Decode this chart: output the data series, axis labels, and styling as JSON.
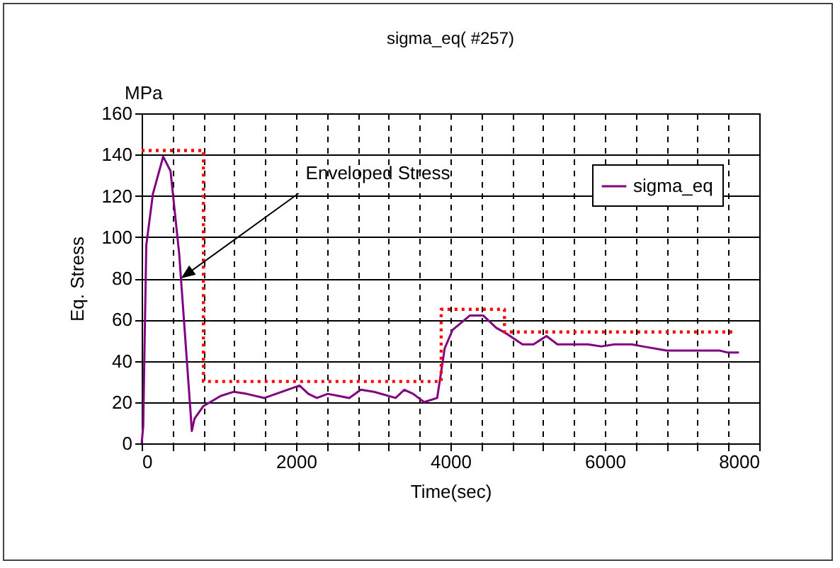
{
  "chart_data": {
    "type": "line",
    "title": "sigma_eq( #257)",
    "xlabel": "Time(sec)",
    "ylabel": "Eq. Stress",
    "annotations": [
      "MPa",
      {
        "text": "Enveloped Stress",
        "x": 510,
        "y": 80
      }
    ],
    "series": [
      {
        "name": "sigma_eq",
        "color": "#800080",
        "x": [
          0,
          20,
          60,
          146,
          279,
          374,
          486,
          628,
          650,
          685,
          798,
          1025,
          1195,
          1360,
          1590,
          1818,
          2045,
          2160,
          2270,
          2410,
          2550,
          2690,
          2838,
          3010,
          3290,
          3403,
          3517,
          3659,
          3828,
          3925,
          4027,
          4253,
          4423,
          4593,
          4735,
          4933,
          5075,
          5244,
          5386,
          5783,
          5953,
          6123,
          6350,
          6490,
          6802,
          7482,
          7595,
          7737
        ],
        "values": [
          0,
          8,
          96,
          121,
          139,
          132,
          92,
          18,
          6,
          12,
          18,
          23,
          25,
          24,
          22,
          25,
          28,
          24,
          22,
          24,
          23,
          22,
          26,
          25,
          22,
          26,
          24,
          20,
          22,
          46,
          55,
          62,
          62,
          56,
          53,
          48,
          48,
          52,
          48,
          48,
          47,
          48,
          48,
          47,
          45,
          45,
          44,
          44
        ]
      },
      {
        "type": "step",
        "color": "#ff0000",
        "line_style": "dotted",
        "x": [
          0,
          800,
          3880,
          4700,
          7700
        ],
        "values": [
          142,
          30,
          65,
          54,
          54
        ]
      }
    ],
    "xlim": [
      0,
      8000
    ],
    "ylim": [
      0,
      160
    ],
    "xticks": [
      0,
      {
        "value": 400,
        "label": null
      },
      {
        "value": 800,
        "label": null
      },
      {
        "value": 1200,
        "label": null
      },
      {
        "value": 1600,
        "label": null
      },
      2000,
      {
        "value": 2400,
        "label": null
      },
      {
        "value": 2800,
        "label": null
      },
      {
        "value": 3200,
        "label": null
      },
      {
        "value": 3600,
        "label": null
      },
      4000,
      {
        "value": 4400,
        "label": null
      },
      {
        "value": 4800,
        "label": null
      },
      {
        "value": 5200,
        "label": null
      },
      {
        "value": 5600,
        "label": null
      },
      6000,
      {
        "value": 6400,
        "label": null
      },
      {
        "value": 6800,
        "label": null
      },
      {
        "value": 7200,
        "label": null
      },
      {
        "value": 7600,
        "label": null
      },
      8000
    ],
    "yticks": [
      0,
      20,
      40,
      60,
      80,
      100,
      120,
      140,
      160
    ],
    "grid": true,
    "legend": "top right",
    "marker": "none"
  }
}
